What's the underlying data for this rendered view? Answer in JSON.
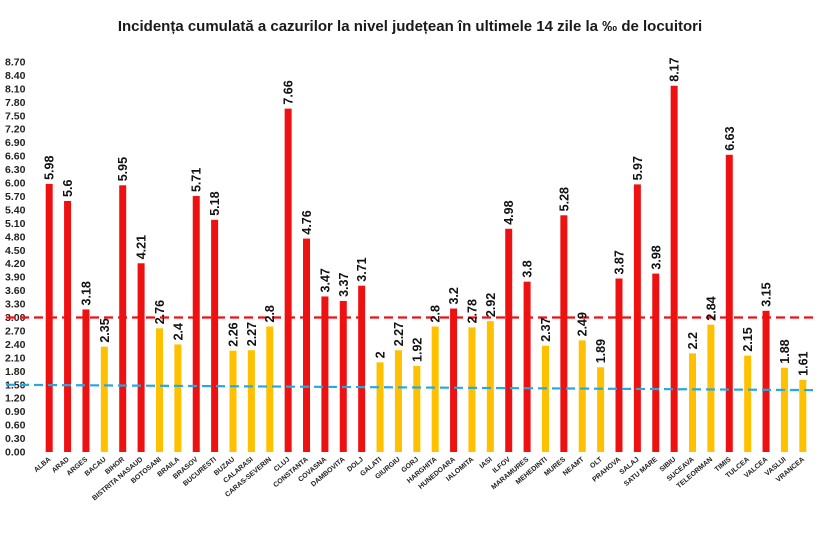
{
  "chart_data": {
    "type": "bar",
    "title": "Incidența cumulată a cazurilor la nivel județean în ultimele 14 zile la ‰ de locuitori",
    "xlabel": "",
    "ylabel": "",
    "ylim": [
      0,
      8.7
    ],
    "yticks": [
      "0.00",
      "0.30",
      "0.60",
      "0.90",
      "1.20",
      "1.50",
      "1.80",
      "2.10",
      "2.40",
      "2.70",
      "3.00",
      "3.30",
      "3.60",
      "3.90",
      "4.20",
      "4.50",
      "4.80",
      "5.10",
      "5.40",
      "5.70",
      "6.00",
      "6.30",
      "6.60",
      "6.90",
      "7.20",
      "7.50",
      "7.80",
      "8.10",
      "8.40",
      "8.70"
    ],
    "categories": [
      "ALBA",
      "ARAD",
      "ARGES",
      "BACAU",
      "BIHOR",
      "BISTRITA NASAUD",
      "BOTOSANI",
      "BRAILA",
      "BRASOV",
      "BUCURESTI",
      "BUZAU",
      "CALARASI",
      "CARAS-SEVERIN",
      "CLUJ",
      "CONSTANTA",
      "COVASNA",
      "DAMBOVITA",
      "DOLJ",
      "GALATI",
      "GIURGIU",
      "GORJ",
      "HARGHITA",
      "HUNEDOARA",
      "IALOMITA",
      "IASI",
      "ILFOV",
      "MARAMURES",
      "MEHEDINTI",
      "MURES",
      "NEAMT",
      "OLT",
      "PRAHOVA",
      "SALAJ",
      "SATU MARE",
      "SIBIU",
      "SUCEAVA",
      "TELEORMAN",
      "TIMIS",
      "TULCEA",
      "VALCEA",
      "VASLUI",
      "VRANCEA"
    ],
    "values": [
      5.98,
      5.6,
      3.18,
      2.35,
      5.95,
      4.21,
      2.76,
      2.4,
      5.71,
      5.18,
      2.26,
      2.27,
      2.8,
      7.66,
      4.76,
      3.47,
      3.37,
      3.71,
      2,
      2.27,
      1.92,
      2.8,
      3.2,
      2.78,
      2.92,
      4.98,
      3.8,
      2.37,
      5.28,
      2.49,
      1.89,
      3.87,
      5.97,
      3.98,
      8.17,
      2.2,
      2.84,
      6.63,
      2.15,
      3.15,
      1.88,
      1.61
    ],
    "labels": [
      "5.98",
      "5.6",
      "3.18",
      "2.35",
      "5.95",
      "4.21",
      "2.76",
      "2.4",
      "5.71",
      "5.18",
      "2.26",
      "2.27",
      "2.8",
      "7.66",
      "4.76",
      "3.47",
      "3.37",
      "3.71",
      "2",
      "2.27",
      "1.92",
      "2.8",
      "3.2",
      "2.78",
      "2.92",
      "4.98",
      "3.8",
      "2.37",
      "5.28",
      "2.49",
      "1.89",
      "3.87",
      "5.97",
      "3.98",
      "8.17",
      "2.2",
      "2.84",
      "6.63",
      "2.15",
      "3.15",
      "1.88",
      "1.61"
    ],
    "threshold_high": 3.0,
    "threshold_low_start": 1.5,
    "threshold_low_end": 1.38,
    "grid": false,
    "legend": "none",
    "colors": {
      "high": "#ee1111",
      "low": "#ffc000",
      "threshold_high_line": "#ee1111",
      "threshold_low_line": "#29a8e0"
    }
  }
}
